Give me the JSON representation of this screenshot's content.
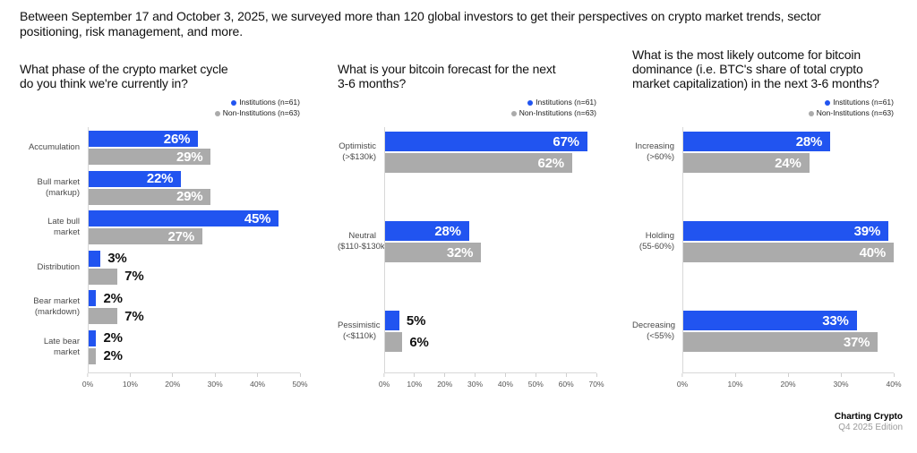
{
  "intro": {
    "text": "Between September 17 and October 3, 2025, we surveyed more than 120 global investors to get their perspectives on crypto market trends, sector positioning, risk management, and more."
  },
  "colors": {
    "institutions": "#2154F0",
    "non_institutions": "#ABABAB",
    "axis_line": "#D8D8D8",
    "value_label_inside": "#FFFFFF",
    "value_label_outside": "#111111"
  },
  "legend": {
    "institutions": "Institutions (n=61)",
    "non_institutions": "Non-Institutions (n=63)",
    "position": "top-right"
  },
  "footer": {
    "brand": "Charting Crypto",
    "edition": "Q4 2025 Edition"
  },
  "chart_data": [
    {
      "type": "bar",
      "orientation": "horizontal",
      "title": "What phase of the crypto market cycle do you think we're currently in?",
      "title_lines": [
        "What phase of the crypto market cycle",
        "do you think we're currently in?"
      ],
      "categories": [
        "Accumulation",
        "Bull market (markup)",
        "Late bull market",
        "Distribution",
        "Bear market (markdown)",
        "Late bear market"
      ],
      "category_lines": [
        [
          "Accumulation"
        ],
        [
          "Bull market",
          "(markup)"
        ],
        [
          "Late bull",
          "market"
        ],
        [
          "Distribution"
        ],
        [
          "Bear market",
          "(markdown)"
        ],
        [
          "Late bear",
          "market"
        ]
      ],
      "series": [
        {
          "name": "Institutions (n=61)",
          "values": [
            26,
            22,
            45,
            3,
            2,
            2
          ]
        },
        {
          "name": "Non-Institutions (n=63)",
          "values": [
            29,
            29,
            27,
            7,
            7,
            2
          ]
        }
      ],
      "value_suffix": "%",
      "xlim": [
        0,
        50
      ],
      "ticks": [
        "0%",
        "10%",
        "20%",
        "30%",
        "40%",
        "50%"
      ],
      "legend_position": "top-right",
      "grid": false
    },
    {
      "type": "bar",
      "orientation": "horizontal",
      "title": "What is your bitcoin forecast for the next 3-6 months?",
      "title_lines": [
        "What is your bitcoin forecast for the next",
        "3-6 months?"
      ],
      "categories": [
        "Optimistic (>$130k)",
        "Neutral ($110-$130k)",
        "Pessimistic (<$110k)"
      ],
      "category_lines": [
        [
          "Optimistic",
          "(>$130k)"
        ],
        [
          "Neutral",
          "($110-$130k)"
        ],
        [
          "Pessimistic",
          "(<$110k)"
        ]
      ],
      "series": [
        {
          "name": "Institutions (n=61)",
          "values": [
            67,
            28,
            5
          ]
        },
        {
          "name": "Non-Institutions (n=63)",
          "values": [
            62,
            32,
            6
          ]
        }
      ],
      "value_suffix": "%",
      "xlim": [
        0,
        70
      ],
      "ticks": [
        "0%",
        "10%",
        "20%",
        "30%",
        "40%",
        "50%",
        "60%",
        "70%"
      ],
      "legend_position": "top-right",
      "grid": false
    },
    {
      "type": "bar",
      "orientation": "horizontal",
      "title": "What is the most likely outcome for bitcoin dominance (i.e. BTC's share of total crypto market capitalization) in the next 3-6 months?",
      "title_lines": [
        "What is the most likely outcome for bitcoin",
        "dominance (i.e. BTC's share of total crypto",
        "market capitalization) in the next 3-6 months?"
      ],
      "categories": [
        "Increasing (>60%)",
        "Holding (55-60%)",
        "Decreasing (<55%)"
      ],
      "category_lines": [
        [
          "Increasing",
          "(>60%)"
        ],
        [
          "Holding",
          "(55-60%)"
        ],
        [
          "Decreasing",
          "(<55%)"
        ]
      ],
      "series": [
        {
          "name": "Institutions (n=61)",
          "values": [
            28,
            39,
            33
          ]
        },
        {
          "name": "Non-Institutions (n=63)",
          "values": [
            24,
            40,
            37
          ]
        }
      ],
      "value_suffix": "%",
      "xlim": [
        0,
        40
      ],
      "ticks": [
        "0%",
        "10%",
        "20%",
        "30%",
        "40%"
      ],
      "legend_position": "top-right",
      "grid": false
    }
  ]
}
